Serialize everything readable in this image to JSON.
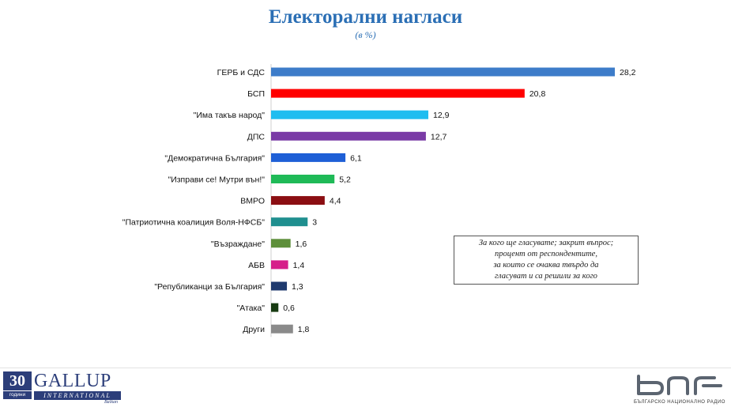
{
  "chart_data": {
    "type": "bar",
    "orientation": "horizontal",
    "title": "Електорални нагласи",
    "subtitle": "(в %)",
    "categories": [
      "ГЕРБ и СДС",
      "БСП",
      "\"Има такъв народ\"",
      "ДПС",
      "\"Демократична България\"",
      "\"Изправи се! Мутри вън!\"",
      "ВМРО",
      "\"Патриотична коалиция Воля-НФСБ\"",
      "\"Възраждане\"",
      "АБВ",
      "\"Републиканци за България\"",
      "\"Атака\"",
      "Други"
    ],
    "values": [
      28.2,
      20.8,
      12.9,
      12.7,
      6.1,
      5.2,
      4.4,
      3,
      1.6,
      1.4,
      1.3,
      0.6,
      1.8
    ],
    "value_labels": [
      "28,2",
      "20,8",
      "12,9",
      "12,7",
      "6,1",
      "5,2",
      "4,4",
      "3",
      "1,6",
      "1,4",
      "1,3",
      "0,6",
      "1,8"
    ],
    "colors": [
      "#3d7cc9",
      "#ff0000",
      "#1fbdf0",
      "#7a3ba6",
      "#1e5fd6",
      "#1fba57",
      "#8b0e12",
      "#1f8f8f",
      "#5d8f3a",
      "#d61f8a",
      "#1f3a6e",
      "#173b12",
      "#8a8a8a"
    ],
    "xlim": [
      0,
      28.2
    ],
    "xlabel": "",
    "ylabel": "",
    "grid": false,
    "legend": "none"
  },
  "note": {
    "lines": [
      "За кого ще гласувате; закрит въпрос;",
      "процент от респондентите,",
      "за които се очаква твърдо да",
      "гласуват и са решили за кого"
    ]
  },
  "footer": {
    "gallup": {
      "number": "30",
      "years": "години",
      "name": "GALLUP",
      "international": "INTERNATIONAL",
      "balkan": "Balkan"
    },
    "bnr": {
      "caption": "БЪЛГАРСКО НАЦИОНАЛНО РАДИО"
    }
  }
}
